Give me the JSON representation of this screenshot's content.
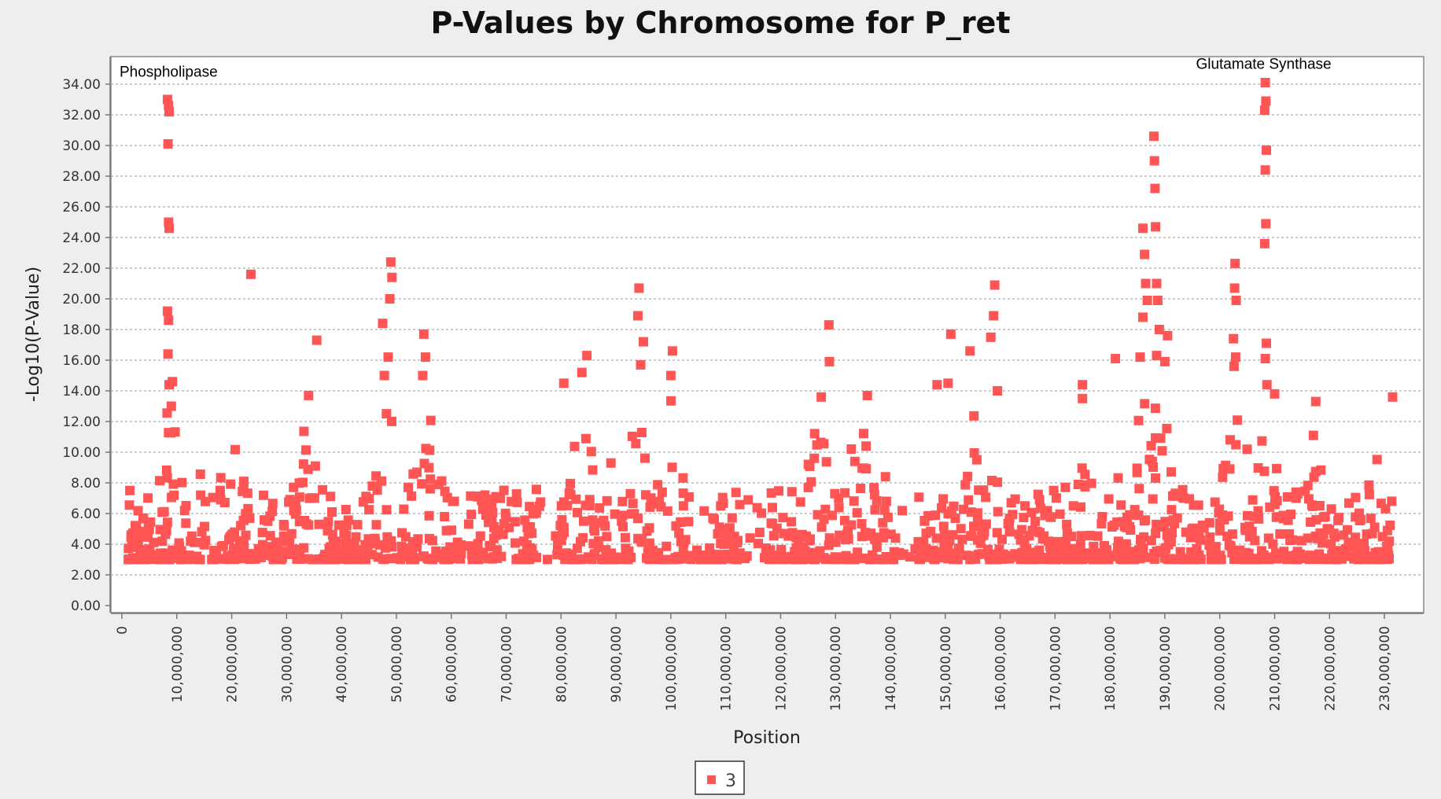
{
  "chart_data": {
    "type": "scatter",
    "title": "P-Values by Chromosome for P_ret",
    "xlabel": "Position",
    "ylabel": "-Log10(P-Value)",
    "xlim": [
      0,
      233000000
    ],
    "ylim": [
      0,
      35
    ],
    "grid": {
      "y": true,
      "x": false,
      "style": "dashed"
    },
    "legend_position": "bottom-center",
    "y_ticks": [
      "0.00",
      "2.00",
      "4.00",
      "6.00",
      "8.00",
      "10.00",
      "12.00",
      "14.00",
      "16.00",
      "18.00",
      "20.00",
      "22.00",
      "24.00",
      "26.00",
      "28.00",
      "30.00",
      "32.00",
      "34.00"
    ],
    "x_ticks": [
      "0",
      "10,000,000",
      "20,000,000",
      "30,000,000",
      "40,000,000",
      "50,000,000",
      "60,000,000",
      "70,000,000",
      "80,000,000",
      "90,000,000",
      "100,000,000",
      "110,000,000",
      "120,000,000",
      "130,000,000",
      "140,000,000",
      "150,000,000",
      "160,000,000",
      "170,000,000",
      "180,000,000",
      "190,000,000",
      "200,000,000",
      "210,000,000",
      "220,000,000",
      "230,000,000"
    ],
    "annotations": [
      {
        "text": "Phospholipase",
        "x": 8500000,
        "y": 34.5
      },
      {
        "text": "Glutamate Synthase",
        "x": 208000000,
        "y": 35.0
      }
    ],
    "series": [
      {
        "name": "3",
        "color": "#ff5555",
        "points": [
          [
            8300000,
            33.0
          ],
          [
            8500000,
            32.6
          ],
          [
            8600000,
            32.2
          ],
          [
            8400000,
            30.1
          ],
          [
            8500000,
            25.0
          ],
          [
            8600000,
            24.6
          ],
          [
            8300000,
            19.2
          ],
          [
            8500000,
            18.6
          ],
          [
            8400000,
            16.4
          ],
          [
            8600000,
            14.4
          ],
          [
            9200000,
            14.6
          ],
          [
            9000000,
            13.0
          ],
          [
            23500000,
            21.6
          ],
          [
            35500000,
            17.3
          ],
          [
            34000000,
            13.7
          ],
          [
            49000000,
            22.4
          ],
          [
            49200000,
            21.4
          ],
          [
            48800000,
            20.0
          ],
          [
            47500000,
            18.4
          ],
          [
            48500000,
            16.2
          ],
          [
            47800000,
            15.0
          ],
          [
            55000000,
            17.7
          ],
          [
            55300000,
            16.2
          ],
          [
            54800000,
            15.0
          ],
          [
            84700000,
            16.3
          ],
          [
            83800000,
            15.2
          ],
          [
            80500000,
            14.5
          ],
          [
            94200000,
            20.7
          ],
          [
            94000000,
            18.9
          ],
          [
            95000000,
            17.2
          ],
          [
            94500000,
            15.7
          ],
          [
            100300000,
            16.6
          ],
          [
            100000000,
            15.0
          ],
          [
            128800000,
            18.3
          ],
          [
            128900000,
            15.9
          ],
          [
            127400000,
            13.6
          ],
          [
            135800000,
            13.7
          ],
          [
            151000000,
            17.7
          ],
          [
            154500000,
            16.6
          ],
          [
            158300000,
            17.5
          ],
          [
            159000000,
            20.9
          ],
          [
            158800000,
            18.9
          ],
          [
            159500000,
            14.0
          ],
          [
            148500000,
            14.4
          ],
          [
            150500000,
            14.5
          ],
          [
            175000000,
            14.4
          ],
          [
            175000000,
            13.5
          ],
          [
            181000000,
            16.1
          ],
          [
            186000000,
            24.6
          ],
          [
            186300000,
            22.9
          ],
          [
            186500000,
            21.0
          ],
          [
            186800000,
            19.9
          ],
          [
            186000000,
            18.8
          ],
          [
            185500000,
            16.2
          ],
          [
            188000000,
            30.6
          ],
          [
            188100000,
            29.0
          ],
          [
            188200000,
            27.2
          ],
          [
            188300000,
            24.7
          ],
          [
            188500000,
            21.0
          ],
          [
            188700000,
            19.9
          ],
          [
            189000000,
            18.0
          ],
          [
            188500000,
            16.3
          ],
          [
            190500000,
            17.6
          ],
          [
            190000000,
            15.9
          ],
          [
            202800000,
            22.3
          ],
          [
            202700000,
            20.7
          ],
          [
            203000000,
            19.9
          ],
          [
            202500000,
            17.4
          ],
          [
            202900000,
            16.2
          ],
          [
            202600000,
            15.6
          ],
          [
            208300000,
            34.1
          ],
          [
            208400000,
            32.9
          ],
          [
            208200000,
            32.3
          ],
          [
            208500000,
            29.7
          ],
          [
            208300000,
            28.4
          ],
          [
            208400000,
            24.9
          ],
          [
            208200000,
            23.6
          ],
          [
            208500000,
            17.1
          ],
          [
            208300000,
            16.1
          ],
          [
            208600000,
            14.4
          ],
          [
            210000000,
            13.8
          ],
          [
            217500000,
            13.3
          ],
          [
            231500000,
            13.6
          ]
        ]
      }
    ]
  },
  "legend": {
    "label": "3"
  }
}
